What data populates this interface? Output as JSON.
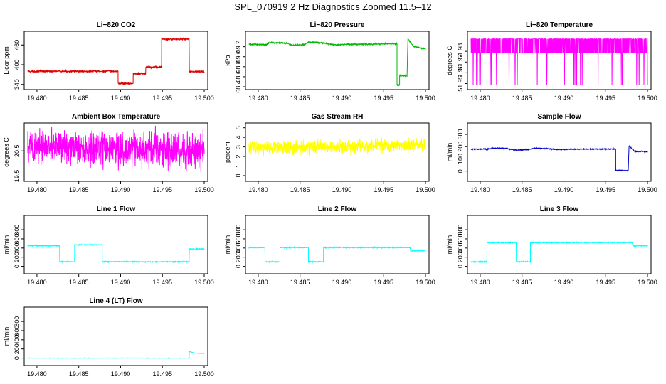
{
  "figure": {
    "title": "SPL_070919  2 Hz Diagnostics Zoomed 11.5–12"
  },
  "chart_data": [
    {
      "type": "line",
      "title": "Li−820 CO2",
      "ylabel": "Licor ppm",
      "color": "#dd0000",
      "xlim": [
        19.4789,
        19.5
      ],
      "ylim": [
        333,
        493
      ],
      "xticks": [
        19.48,
        19.485,
        19.49,
        19.495,
        19.5
      ],
      "xtick_labels": [
        "19.480",
        "19.485",
        "19.490",
        "19.495",
        "19.500"
      ],
      "yticks": [
        340,
        400,
        460
      ],
      "ytick_labels": [
        "340",
        "400",
        "460"
      ],
      "noise": 1.5,
      "segments": [
        [
          19.4789,
          380
        ],
        [
          19.4897,
          380
        ],
        [
          19.4897,
          343
        ],
        [
          19.4915,
          343
        ],
        [
          19.4915,
          373
        ],
        [
          19.493,
          373
        ],
        [
          19.493,
          393
        ],
        [
          19.4949,
          393
        ],
        [
          19.4949,
          478
        ],
        [
          19.4982,
          478
        ],
        [
          19.4982,
          379
        ],
        [
          19.5,
          379
        ]
      ]
    },
    {
      "type": "line",
      "title": "Li−820 Pressure",
      "ylabel": "kPa",
      "color": "#00bb00",
      "xlim": [
        19.4789,
        19.5
      ],
      "ylim": [
        68.4,
        69.45
      ],
      "xticks": [
        19.48,
        19.485,
        19.49,
        19.495,
        19.5
      ],
      "xtick_labels": [
        "19.480",
        "19.485",
        "19.490",
        "19.495",
        "19.500"
      ],
      "yticks": [
        68.4,
        68.6,
        68.8,
        69.0,
        69.2
      ],
      "ytick_labels": [
        "68.4",
        "68.6",
        "68.8",
        "69.0",
        "69.2"
      ],
      "noise": 0.008,
      "segments": [
        [
          19.4789,
          69.25
        ],
        [
          19.481,
          69.24
        ],
        [
          19.4812,
          69.28
        ],
        [
          19.4835,
          69.27
        ],
        [
          19.484,
          69.23
        ],
        [
          19.4855,
          69.24
        ],
        [
          19.486,
          69.29
        ],
        [
          19.4875,
          69.28
        ],
        [
          19.489,
          69.24
        ],
        [
          19.493,
          69.25
        ],
        [
          19.4955,
          69.26
        ],
        [
          19.4966,
          69.26
        ],
        [
          19.4966,
          68.44
        ],
        [
          19.4969,
          68.44
        ],
        [
          19.4969,
          68.62
        ],
        [
          19.4978,
          68.62
        ],
        [
          19.4979,
          69.36
        ],
        [
          19.4985,
          69.22
        ],
        [
          19.4992,
          69.18
        ],
        [
          19.5,
          69.16
        ]
      ]
    },
    {
      "type": "line",
      "title": "Li−820 Temperature",
      "ylabel": "degrees C",
      "color": "#ff00ff",
      "xlim": [
        19.4789,
        19.5
      ],
      "ylim": [
        51.947,
        51.996
      ],
      "xticks": [
        19.48,
        19.485,
        19.49,
        19.495,
        19.5
      ],
      "xtick_labels": [
        "19.480",
        "19.485",
        "19.490",
        "19.495",
        "19.500"
      ],
      "yticks": [
        51.95,
        51.96,
        51.97,
        51.98
      ],
      "ytick_labels": [
        "51.95",
        "51.96",
        "51.97",
        "51.98"
      ],
      "levels": [
        51.9785,
        51.9916
      ],
      "lowlevel": 51.9485
    },
    {
      "type": "line",
      "title": "Ambient Box Temperature",
      "ylabel": "degrees C",
      "color": "#ff00ff",
      "xlim": [
        19.4789,
        19.5
      ],
      "ylim": [
        19.4,
        21.5
      ],
      "xticks": [
        19.48,
        19.485,
        19.49,
        19.495,
        19.5
      ],
      "xtick_labels": [
        "19.480",
        "19.485",
        "19.490",
        "19.495",
        "19.500"
      ],
      "yticks": [
        19.5,
        20.5
      ],
      "ytick_labels": [
        "19.5",
        "20.5"
      ],
      "noise": 0.35,
      "segments": [
        [
          19.4789,
          20.7
        ],
        [
          19.5,
          20.5
        ]
      ]
    },
    {
      "type": "line",
      "title": "Gas Stream RH",
      "ylabel": "percent",
      "color": "#ffff00",
      "xlim": [
        19.4789,
        19.5
      ],
      "ylim": [
        -0.3,
        5.2
      ],
      "xticks": [
        19.48,
        19.485,
        19.49,
        19.495,
        19.5
      ],
      "xtick_labels": [
        "19.480",
        "19.485",
        "19.490",
        "19.495",
        "19.500"
      ],
      "yticks": [
        0,
        1,
        2,
        3,
        4,
        5
      ],
      "ytick_labels": [
        "0",
        "1",
        "2",
        "3",
        "4",
        "5"
      ],
      "noise": 0.35,
      "segments": [
        [
          19.4789,
          2.9
        ],
        [
          19.5,
          3.2
        ]
      ]
    },
    {
      "type": "line",
      "title": "Sample Flow",
      "ylabel": "ml/min",
      "color": "#0000cc",
      "xlim": [
        19.4789,
        19.5
      ],
      "ylim": [
        -60,
        370
      ],
      "xticks": [
        19.48,
        19.485,
        19.49,
        19.495,
        19.5
      ],
      "xtick_labels": [
        "19.480",
        "19.485",
        "19.490",
        "19.495",
        "19.500"
      ],
      "yticks": [
        0,
        100,
        200,
        300
      ],
      "ytick_labels": [
        "0",
        "100",
        "200",
        "300"
      ],
      "noise": 2,
      "segments": [
        [
          19.4789,
          180
        ],
        [
          19.481,
          180
        ],
        [
          19.4815,
          188
        ],
        [
          19.483,
          186
        ],
        [
          19.4842,
          172
        ],
        [
          19.4858,
          176
        ],
        [
          19.4865,
          188
        ],
        [
          19.488,
          184
        ],
        [
          19.4892,
          176
        ],
        [
          19.492,
          180
        ],
        [
          19.4958,
          180
        ],
        [
          19.4962,
          180
        ],
        [
          19.4962,
          6
        ],
        [
          19.4977,
          6
        ],
        [
          19.4978,
          205
        ],
        [
          19.4985,
          160
        ],
        [
          19.5,
          160
        ]
      ]
    },
    {
      "type": "line",
      "title": "Line 1 Flow",
      "ylabel": "ml/min",
      "color": "#00ffff",
      "xlim": [
        19.4789,
        19.5
      ],
      "ylim": [
        -100,
        1050
      ],
      "xticks": [
        19.48,
        19.485,
        19.49,
        19.495,
        19.5
      ],
      "xtick_labels": [
        "19.480",
        "19.485",
        "19.490",
        "19.495",
        "19.500"
      ],
      "yticks": [
        0,
        200,
        400,
        600,
        800
      ],
      "ytick_labels": [
        "0",
        "200",
        "400",
        "600",
        "800"
      ],
      "noise": 5,
      "segments": [
        [
          19.4789,
          450
        ],
        [
          19.4827,
          450
        ],
        [
          19.4827,
          100
        ],
        [
          19.4845,
          100
        ],
        [
          19.4845,
          470
        ],
        [
          19.4878,
          470
        ],
        [
          19.4878,
          100
        ],
        [
          19.4982,
          100
        ],
        [
          19.4982,
          380
        ],
        [
          19.5,
          380
        ]
      ]
    },
    {
      "type": "line",
      "title": "Line 2 Flow",
      "ylabel": "ml/min",
      "color": "#00ffff",
      "xlim": [
        19.4789,
        19.5
      ],
      "ylim": [
        -100,
        1050
      ],
      "xticks": [
        19.48,
        19.485,
        19.49,
        19.495,
        19.5
      ],
      "xtick_labels": [
        "19.480",
        "19.485",
        "19.490",
        "19.495",
        "19.500"
      ],
      "yticks": [
        0,
        200,
        400,
        600,
        800
      ],
      "ytick_labels": [
        "0",
        "200",
        "400",
        "600",
        "800"
      ],
      "noise": 5,
      "segments": [
        [
          19.4789,
          410
        ],
        [
          19.4808,
          410
        ],
        [
          19.4808,
          100
        ],
        [
          19.4826,
          100
        ],
        [
          19.4826,
          410
        ],
        [
          19.486,
          410
        ],
        [
          19.486,
          100
        ],
        [
          19.4878,
          100
        ],
        [
          19.4878,
          410
        ],
        [
          19.4982,
          410
        ],
        [
          19.4982,
          340
        ],
        [
          19.5,
          340
        ]
      ]
    },
    {
      "type": "line",
      "title": "Line 3 Flow",
      "ylabel": "ml/min",
      "color": "#00ffff",
      "xlim": [
        19.4789,
        19.5
      ],
      "ylim": [
        -100,
        1050
      ],
      "xticks": [
        19.48,
        19.485,
        19.49,
        19.495,
        19.5
      ],
      "xtick_labels": [
        "19.480",
        "19.485",
        "19.490",
        "19.495",
        "19.500"
      ],
      "yticks": [
        0,
        200,
        400,
        600,
        800
      ],
      "ytick_labels": [
        "0",
        "200",
        "400",
        "600",
        "800"
      ],
      "noise": 5,
      "segments": [
        [
          19.4789,
          100
        ],
        [
          19.4808,
          100
        ],
        [
          19.4808,
          520
        ],
        [
          19.4843,
          520
        ],
        [
          19.4843,
          100
        ],
        [
          19.486,
          100
        ],
        [
          19.486,
          520
        ],
        [
          19.4982,
          520
        ],
        [
          19.4982,
          450
        ],
        [
          19.5,
          450
        ]
      ]
    },
    {
      "type": "line",
      "title": "Line 4 (LT) Flow",
      "ylabel": "ml/min",
      "color": "#00ffff",
      "xlim": [
        19.4789,
        19.5
      ],
      "ylim": [
        -100,
        1050
      ],
      "xticks": [
        19.48,
        19.485,
        19.49,
        19.495,
        19.5
      ],
      "xtick_labels": [
        "19.480",
        "19.485",
        "19.490",
        "19.495",
        "19.500"
      ],
      "yticks": [
        0,
        200,
        400,
        600,
        800
      ],
      "ytick_labels": [
        "0",
        "200",
        "400",
        "600",
        "800"
      ],
      "noise": 2,
      "segments": [
        [
          19.4789,
          0
        ],
        [
          19.4982,
          0
        ],
        [
          19.4982,
          150
        ],
        [
          19.4988,
          110
        ],
        [
          19.5,
          100
        ]
      ]
    }
  ]
}
